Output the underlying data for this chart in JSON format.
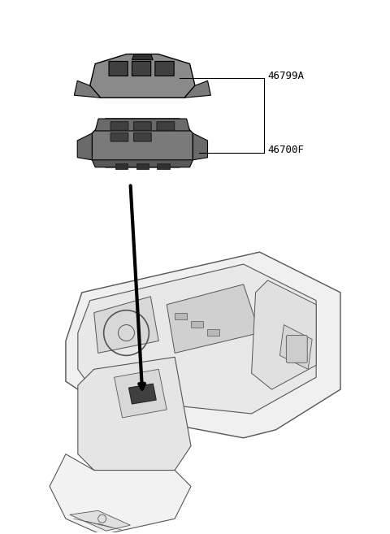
{
  "bg_color": "#ffffff",
  "line_color": "#000000",
  "part_color": "#808080",
  "dark_part_color": "#555555",
  "label_46799A": "46799A",
  "label_46700F": "46700F",
  "fig_width": 4.8,
  "fig_height": 6.57,
  "dpi": 100,
  "leader_line_color": "#333333",
  "car_line_color": "#555555",
  "bracket_color": "#000000"
}
